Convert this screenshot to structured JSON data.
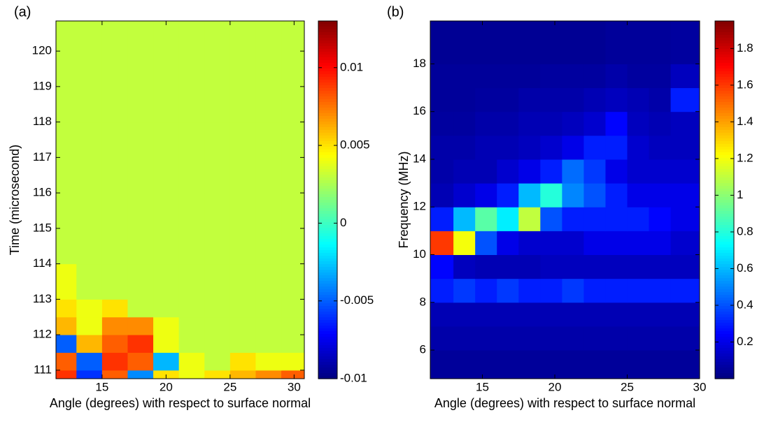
{
  "chart_data": [
    {
      "type": "heatmap",
      "panel_label": "(a)",
      "xlabel": "Angle (degrees) with respect to surface normal",
      "ylabel": "Time (microsecond)",
      "xbins": [
        11.4,
        13,
        15,
        17,
        19,
        21,
        23,
        25,
        27,
        29,
        30.8
      ],
      "ybins": [
        110.76,
        111,
        111.5,
        112,
        112.5,
        113,
        114,
        116,
        118,
        120.85
      ],
      "z": [
        [
          0.009,
          -0.006,
          0.008,
          -0.004,
          0.005,
          0.004,
          0.005,
          0.006,
          0.007,
          0.008
        ],
        [
          0.008,
          -0.005,
          0.009,
          0.008,
          -0.003,
          0.004,
          0.003,
          0.005,
          0.004,
          0.004
        ],
        [
          -0.005,
          0.006,
          0.008,
          0.009,
          0.004,
          0.003,
          0.003,
          0.003,
          0.003,
          0.003
        ],
        [
          0.006,
          0.004,
          0.007,
          0.007,
          0.004,
          0.003,
          0.003,
          0.003,
          0.003,
          0.003
        ],
        [
          0.005,
          0.004,
          0.005,
          0.003,
          0.003,
          0.003,
          0.003,
          0.003,
          0.003,
          0.003
        ],
        [
          0.004,
          0.003,
          0.003,
          0.003,
          0.003,
          0.003,
          0.003,
          0.003,
          0.003,
          0.003
        ],
        [
          0.003,
          0.003,
          0.003,
          0.003,
          0.003,
          0.003,
          0.003,
          0.003,
          0.003,
          0.003
        ],
        [
          0.003,
          0.003,
          0.003,
          0.003,
          0.003,
          0.003,
          0.003,
          0.003,
          0.003,
          0.003
        ],
        [
          0.003,
          0.003,
          0.003,
          0.003,
          0.003,
          0.003,
          0.003,
          0.003,
          0.003,
          0.003
        ]
      ],
      "xlim": [
        11.4,
        30.8
      ],
      "ylim": [
        110.76,
        120.85
      ],
      "xticks": [
        15,
        20,
        25,
        30
      ],
      "yticks": [
        111,
        112,
        113,
        114,
        115,
        116,
        117,
        118,
        119,
        120
      ],
      "clim": [
        -0.01,
        0.013
      ],
      "cticks": [
        -0.01,
        -0.005,
        0,
        0.005,
        0.01
      ]
    },
    {
      "type": "heatmap",
      "panel_label": "(b)",
      "xlabel": "Angle (degrees) with respect to surface normal",
      "ylabel": "Frequency (MHz)",
      "xbins": [
        11.4,
        13,
        14.5,
        16,
        17.5,
        19,
        20.5,
        22,
        23.5,
        25,
        26.5,
        28,
        30
      ],
      "ybins": [
        4.8,
        6,
        7,
        8,
        9,
        10,
        11,
        12,
        13,
        14,
        15,
        16,
        17,
        18,
        19.8
      ],
      "z": [
        [
          0.05,
          0.05,
          0.05,
          0.05,
          0.05,
          0.05,
          0.05,
          0.05,
          0.05,
          0.05,
          0.05,
          0.05
        ],
        [
          0.08,
          0.08,
          0.08,
          0.08,
          0.08,
          0.08,
          0.08,
          0.08,
          0.08,
          0.08,
          0.08,
          0.08
        ],
        [
          0.1,
          0.1,
          0.1,
          0.1,
          0.1,
          0.1,
          0.1,
          0.1,
          0.1,
          0.1,
          0.1,
          0.1
        ],
        [
          0.3,
          0.35,
          0.3,
          0.35,
          0.3,
          0.3,
          0.35,
          0.3,
          0.3,
          0.3,
          0.3,
          0.3
        ],
        [
          0.25,
          0.12,
          0.1,
          0.1,
          0.1,
          0.12,
          0.12,
          0.12,
          0.12,
          0.12,
          0.12,
          0.12
        ],
        [
          1.6,
          1.2,
          0.4,
          0.2,
          0.15,
          0.15,
          0.15,
          0.2,
          0.2,
          0.2,
          0.2,
          0.15
        ],
        [
          0.3,
          0.6,
          0.9,
          0.7,
          1.1,
          0.4,
          0.3,
          0.3,
          0.3,
          0.3,
          0.25,
          0.2
        ],
        [
          0.1,
          0.15,
          0.2,
          0.3,
          0.6,
          0.8,
          0.5,
          0.4,
          0.3,
          0.2,
          0.2,
          0.2
        ],
        [
          0.08,
          0.1,
          0.1,
          0.15,
          0.2,
          0.3,
          0.45,
          0.35,
          0.2,
          0.15,
          0.15,
          0.15
        ],
        [
          0.08,
          0.08,
          0.1,
          0.1,
          0.12,
          0.15,
          0.2,
          0.3,
          0.3,
          0.15,
          0.12,
          0.12
        ],
        [
          0.06,
          0.06,
          0.08,
          0.08,
          0.1,
          0.1,
          0.12,
          0.15,
          0.25,
          0.12,
          0.1,
          0.12
        ],
        [
          0.05,
          0.05,
          0.06,
          0.06,
          0.08,
          0.08,
          0.08,
          0.1,
          0.12,
          0.1,
          0.08,
          0.3
        ],
        [
          0.05,
          0.05,
          0.05,
          0.05,
          0.05,
          0.06,
          0.06,
          0.06,
          0.08,
          0.06,
          0.06,
          0.12
        ],
        [
          0.04,
          0.04,
          0.04,
          0.04,
          0.04,
          0.04,
          0.04,
          0.04,
          0.05,
          0.05,
          0.05,
          0.06
        ]
      ],
      "xlim": [
        11.4,
        30
      ],
      "ylim": [
        4.8,
        19.8
      ],
      "xticks": [
        15,
        20,
        25,
        30
      ],
      "yticks": [
        6,
        8,
        10,
        12,
        14,
        16,
        18
      ],
      "clim": [
        0,
        1.95
      ],
      "cticks": [
        0.2,
        0.4,
        0.6,
        0.8,
        1,
        1.2,
        1.4,
        1.6,
        1.8
      ]
    }
  ]
}
